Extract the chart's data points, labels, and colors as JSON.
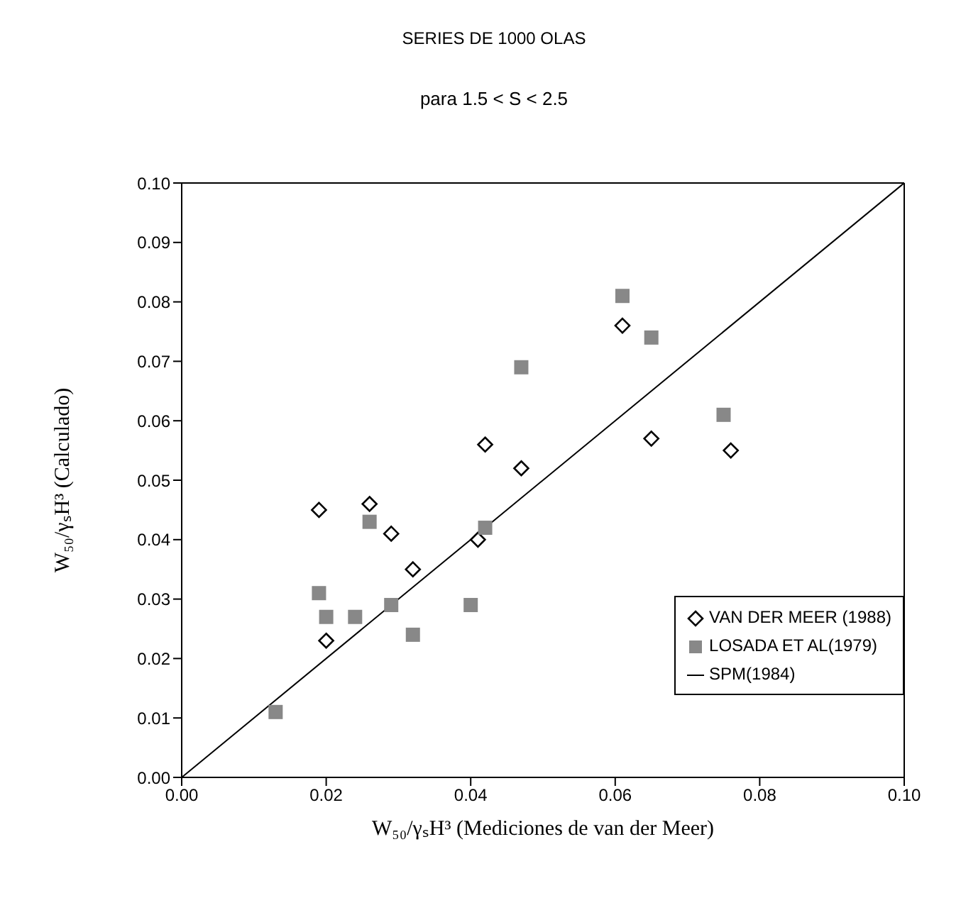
{
  "chart_data": {
    "type": "scatter",
    "title": "SERIES DE 1000 OLAS",
    "subtitle": "para 1.5 < S < 2.5",
    "xlabel": "W₅₀/γₛH³ (Mediciones de van der Meer)",
    "ylabel": "W₅₀/γₛH³ (Calculado)",
    "xlim": [
      0,
      0.1
    ],
    "ylim": [
      0,
      0.1
    ],
    "xticks": [
      {
        "value": 0,
        "label": "0.00"
      },
      {
        "value": 0.02,
        "label": "0.02"
      },
      {
        "value": 0.04,
        "label": "0.04"
      },
      {
        "value": 0.06,
        "label": "0.06"
      },
      {
        "value": 0.08,
        "label": "0.08"
      },
      {
        "value": 0.1,
        "label": "0.10"
      }
    ],
    "yticks": [
      {
        "value": 0,
        "label": "0.00"
      },
      {
        "value": 0.01,
        "label": "0.01"
      },
      {
        "value": 0.02,
        "label": "0.02"
      },
      {
        "value": 0.03,
        "label": "0.03"
      },
      {
        "value": 0.04,
        "label": "0.04"
      },
      {
        "value": 0.05,
        "label": "0.05"
      },
      {
        "value": 0.06,
        "label": "0.06"
      },
      {
        "value": 0.07,
        "label": "0.07"
      },
      {
        "value": 0.08,
        "label": "0.08"
      },
      {
        "value": 0.09,
        "label": "0.09"
      },
      {
        "value": 0.1,
        "label": "0.10"
      }
    ],
    "legend": "bottom right",
    "series": [
      {
        "name": "VAN DER MEER (1988)",
        "marker": "diamond",
        "color": "#000000",
        "x": [
          0.019,
          0.026,
          0.029,
          0.032,
          0.02,
          0.041,
          0.047,
          0.042,
          0.061,
          0.065,
          0.076
        ],
        "values": [
          0.045,
          0.046,
          0.041,
          0.035,
          0.023,
          0.04,
          0.052,
          0.056,
          0.076,
          0.057,
          0.055
        ]
      },
      {
        "name": "LOSADA ET AL(1979)",
        "marker": "square",
        "color": "#888888",
        "x": [
          0.013,
          0.019,
          0.02,
          0.024,
          0.029,
          0.032,
          0.04,
          0.042,
          0.026,
          0.047,
          0.061,
          0.065,
          0.075
        ],
        "values": [
          0.011,
          0.031,
          0.027,
          0.027,
          0.029,
          0.024,
          0.029,
          0.042,
          0.043,
          0.069,
          0.081,
          0.074,
          0.061
        ]
      },
      {
        "name": "SPM(1984)",
        "type": "line",
        "marker": "none",
        "line_style": "solid",
        "color": "#000000",
        "x": [
          0,
          0.1
        ],
        "values": [
          0,
          0.1
        ]
      }
    ]
  }
}
